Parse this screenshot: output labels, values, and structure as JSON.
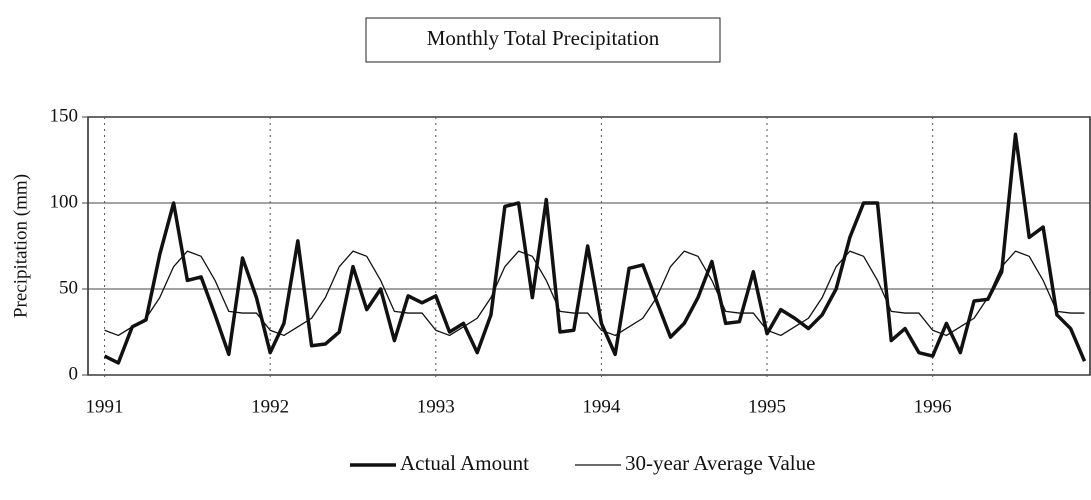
{
  "chart_data": {
    "type": "line",
    "title": "Monthly Total Precipitation",
    "ylabel": "Precipitation (mm)",
    "x": [
      1991.0,
      1991.083,
      1991.167,
      1991.25,
      1991.333,
      1991.417,
      1991.5,
      1991.583,
      1991.667,
      1991.75,
      1991.833,
      1991.917,
      1992.0,
      1992.083,
      1992.167,
      1992.25,
      1992.333,
      1992.417,
      1992.5,
      1992.583,
      1992.667,
      1992.75,
      1992.833,
      1992.917,
      1993.0,
      1993.083,
      1993.167,
      1993.25,
      1993.333,
      1993.417,
      1993.5,
      1993.583,
      1993.667,
      1993.75,
      1993.833,
      1993.917,
      1994.0,
      1994.083,
      1994.167,
      1994.25,
      1994.333,
      1994.417,
      1994.5,
      1994.583,
      1994.667,
      1994.75,
      1994.833,
      1994.917,
      1995.0,
      1995.083,
      1995.167,
      1995.25,
      1995.333,
      1995.417,
      1995.5,
      1995.583,
      1995.667,
      1995.75,
      1995.833,
      1995.917,
      1996.0,
      1996.083,
      1996.167,
      1996.25,
      1996.333,
      1996.417,
      1996.5,
      1996.583,
      1996.667,
      1996.75,
      1996.833,
      1996.917
    ],
    "series": [
      {
        "name": "Actual Amount",
        "color": "#111111",
        "width": 3.5,
        "values": [
          11,
          7,
          28,
          32,
          70,
          100,
          55,
          57,
          35,
          12,
          68,
          45,
          13,
          30,
          78,
          17,
          18,
          25,
          63,
          38,
          50,
          20,
          46,
          42,
          46,
          25,
          30,
          13,
          35,
          98,
          100,
          45,
          102,
          25,
          26,
          75,
          30,
          12,
          62,
          64,
          43,
          22,
          30,
          45,
          66,
          30,
          31,
          60,
          24,
          38,
          33,
          27,
          35,
          50,
          80,
          100,
          100,
          20,
          27,
          13,
          11,
          30,
          13,
          43,
          44,
          60,
          140,
          80,
          86,
          35,
          27,
          8
        ]
      },
      {
        "name": "30-year Average Value",
        "color": "#111111",
        "width": 1.3,
        "values": [
          26,
          23,
          28,
          33,
          45,
          63,
          72,
          69,
          55,
          37,
          36,
          36,
          26,
          23,
          28,
          33,
          45,
          63,
          72,
          69,
          55,
          37,
          36,
          36,
          26,
          23,
          28,
          33,
          45,
          63,
          72,
          69,
          55,
          37,
          36,
          36,
          26,
          23,
          28,
          33,
          45,
          63,
          72,
          69,
          55,
          37,
          36,
          36,
          26,
          23,
          28,
          33,
          45,
          63,
          72,
          69,
          55,
          37,
          36,
          36,
          26,
          23,
          28,
          33,
          45,
          63,
          72,
          69,
          55,
          37,
          36,
          36
        ]
      }
    ],
    "xlim": [
      1990.9,
      1996.95
    ],
    "xticks": [
      1991,
      1992,
      1993,
      1994,
      1995,
      1996
    ],
    "ylim": [
      0,
      150
    ],
    "yticks": [
      0,
      50,
      100,
      150
    ]
  }
}
